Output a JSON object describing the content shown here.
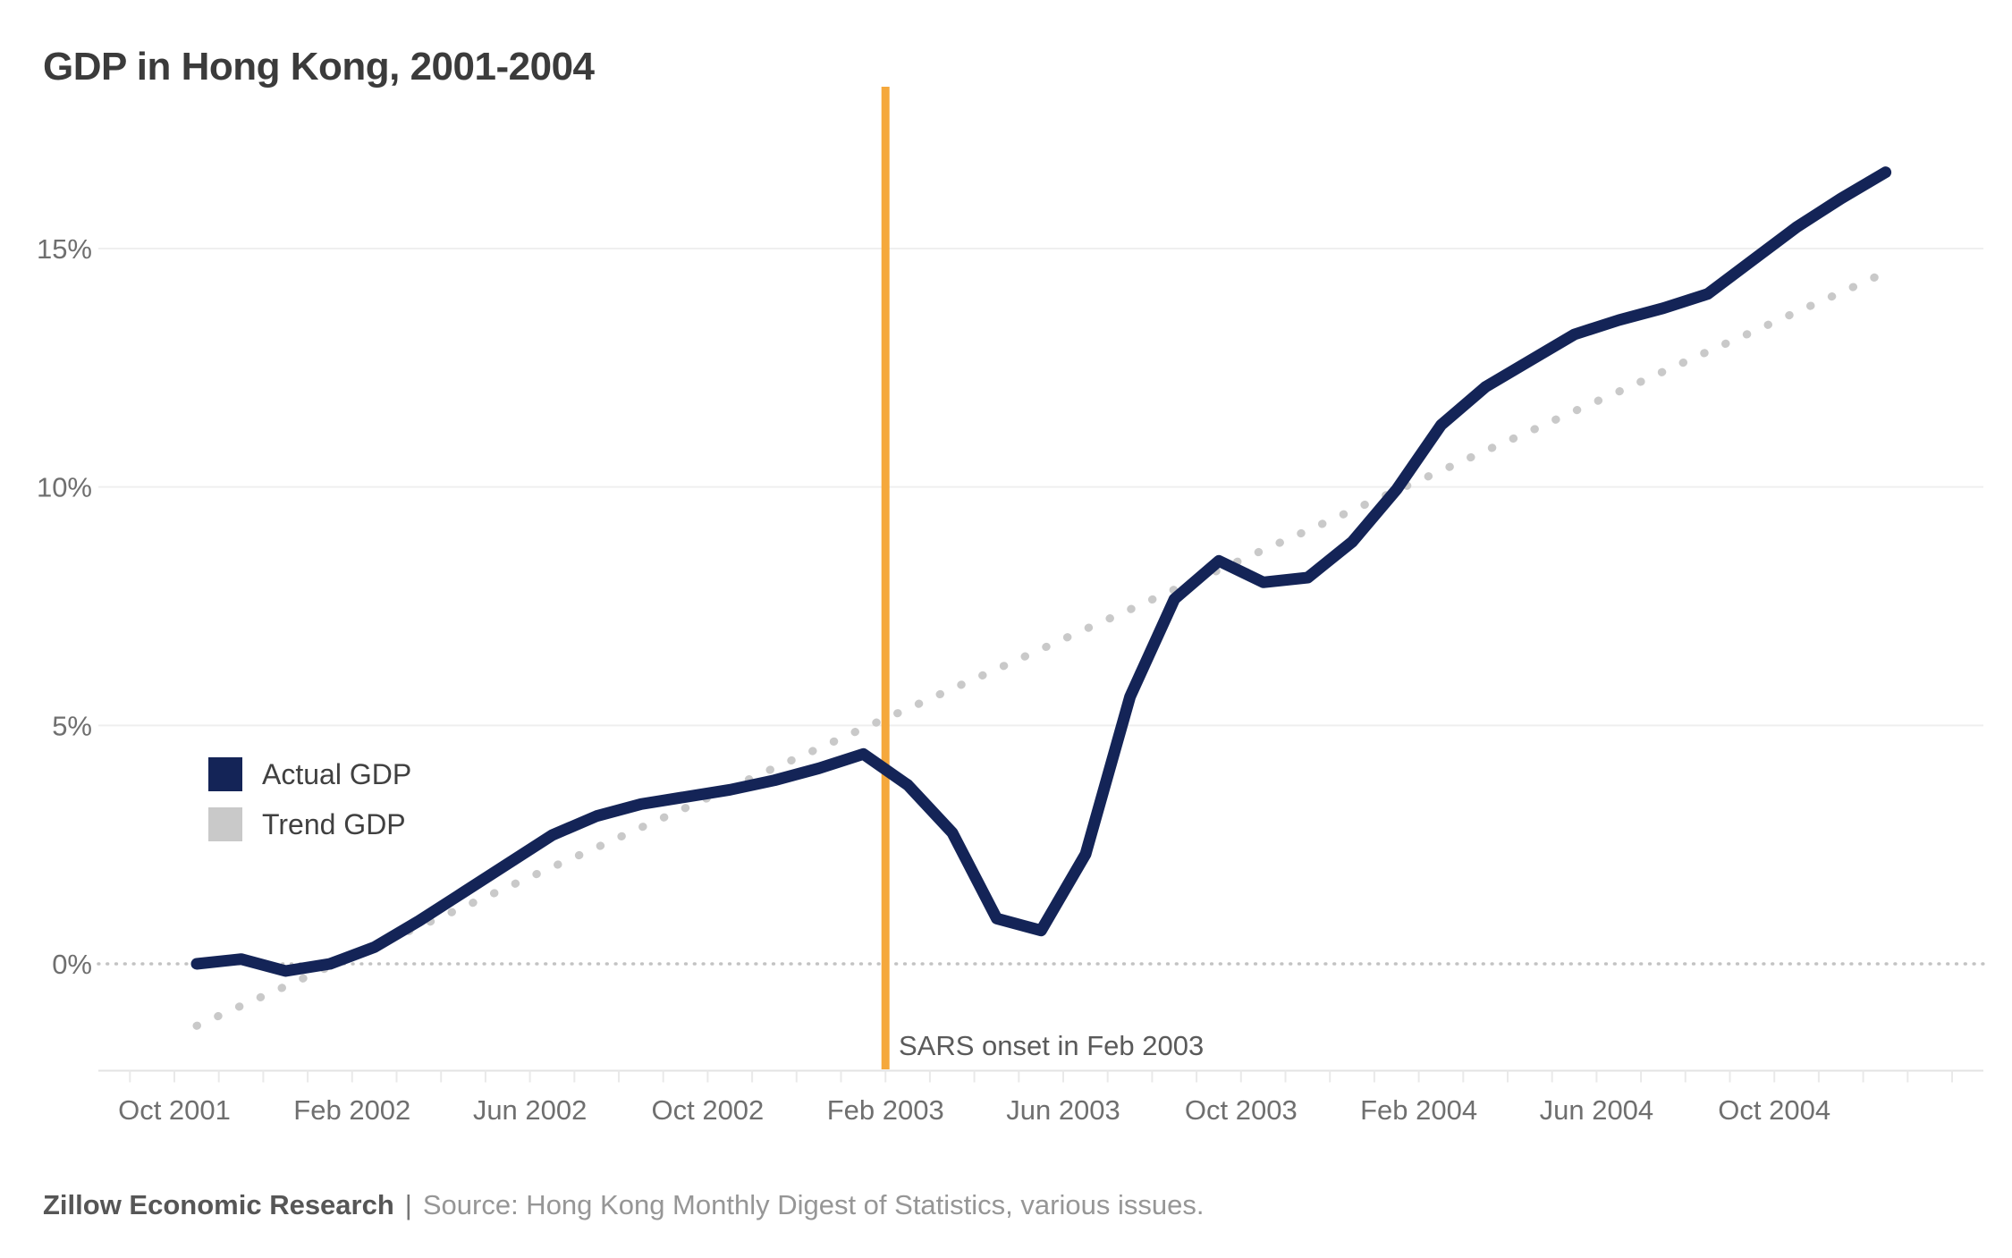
{
  "title": "GDP in Hong Kong, 2001-2004",
  "legend": {
    "items": [
      {
        "label": "Actual GDP",
        "color": "#142457"
      },
      {
        "label": "Trend GDP",
        "color": "#c9c9c9"
      }
    ]
  },
  "annotation": "SARS onset in Feb 2003",
  "footer": {
    "brand": "Zillow Economic Research",
    "separator": "|",
    "source": "Source: Hong Kong Monthly Digest of Statistics, various issues."
  },
  "chart_data": {
    "type": "line",
    "title": "GDP in Hong Kong, 2001-2004",
    "x": [
      "Oct 2001",
      "Nov 2001",
      "Dec 2001",
      "Jan 2002",
      "Feb 2002",
      "Mar 2002",
      "Apr 2002",
      "May 2002",
      "Jun 2002",
      "Jul 2002",
      "Aug 2002",
      "Sep 2002",
      "Oct 2002",
      "Nov 2002",
      "Dec 2002",
      "Jan 2003",
      "Feb 2003",
      "Mar 2003",
      "Apr 2003",
      "May 2003",
      "Jun 2003",
      "Jul 2003",
      "Aug 2003",
      "Sep 2003",
      "Oct 2003",
      "Nov 2003",
      "Dec 2003",
      "Jan 2004",
      "Feb 2004",
      "Mar 2004",
      "Apr 2004",
      "May 2004",
      "Jun 2004",
      "Jul 2004",
      "Aug 2004",
      "Sep 2004",
      "Oct 2004",
      "Nov 2004",
      "Dec 2004"
    ],
    "x_tick_labels": [
      "Oct 2001",
      "Feb 2002",
      "Jun 2002",
      "Oct 2002",
      "Feb 2003",
      "Jun 2003",
      "Oct 2003",
      "Feb 2004",
      "Jun 2004",
      "Oct 2004"
    ],
    "x_tick_month_indices": [
      0,
      4,
      8,
      12,
      16,
      20,
      24,
      28,
      32,
      36
    ],
    "yticks": [
      {
        "value": 0,
        "label": "0%"
      },
      {
        "value": 5,
        "label": "5%"
      },
      {
        "value": 10,
        "label": "10%"
      },
      {
        "value": 15,
        "label": "15%"
      }
    ],
    "ylim": [
      -2.2,
      18.4
    ],
    "grid": "horizontal-only",
    "legend_position": "inside-left-middle",
    "series": [
      {
        "name": "Actual GDP",
        "type": "line",
        "style": "solid",
        "color": "#142457",
        "values": [
          0.0,
          0.1,
          -0.15,
          0.0,
          0.35,
          0.9,
          1.5,
          2.1,
          2.7,
          3.1,
          3.35,
          3.5,
          3.65,
          3.85,
          4.1,
          4.4,
          3.75,
          2.75,
          0.95,
          0.7,
          2.3,
          5.6,
          7.65,
          8.45,
          8.0,
          8.1,
          8.85,
          9.95,
          11.3,
          12.1,
          12.65,
          13.2,
          13.5,
          13.75,
          14.05,
          14.75,
          15.45,
          16.05,
          16.6
        ]
      },
      {
        "name": "Trend GDP",
        "type": "line",
        "style": "dotted",
        "color": "#c9c9c9",
        "values": [
          -1.3,
          -0.88,
          -0.47,
          -0.05,
          0.36,
          0.78,
          1.19,
          1.61,
          2.03,
          2.44,
          2.86,
          3.27,
          3.69,
          4.11,
          4.52,
          4.94,
          5.35,
          5.77,
          6.18,
          6.6,
          7.02,
          7.43,
          7.85,
          8.26,
          8.68,
          9.09,
          9.51,
          9.93,
          10.34,
          10.76,
          11.17,
          11.59,
          12.0,
          12.42,
          12.84,
          13.25,
          13.67,
          14.08,
          14.5
        ]
      }
    ],
    "annotation_line": {
      "x": "Feb 2003",
      "month_index": 16,
      "color": "#f5a83c",
      "label": "SARS onset in Feb 2003"
    }
  }
}
